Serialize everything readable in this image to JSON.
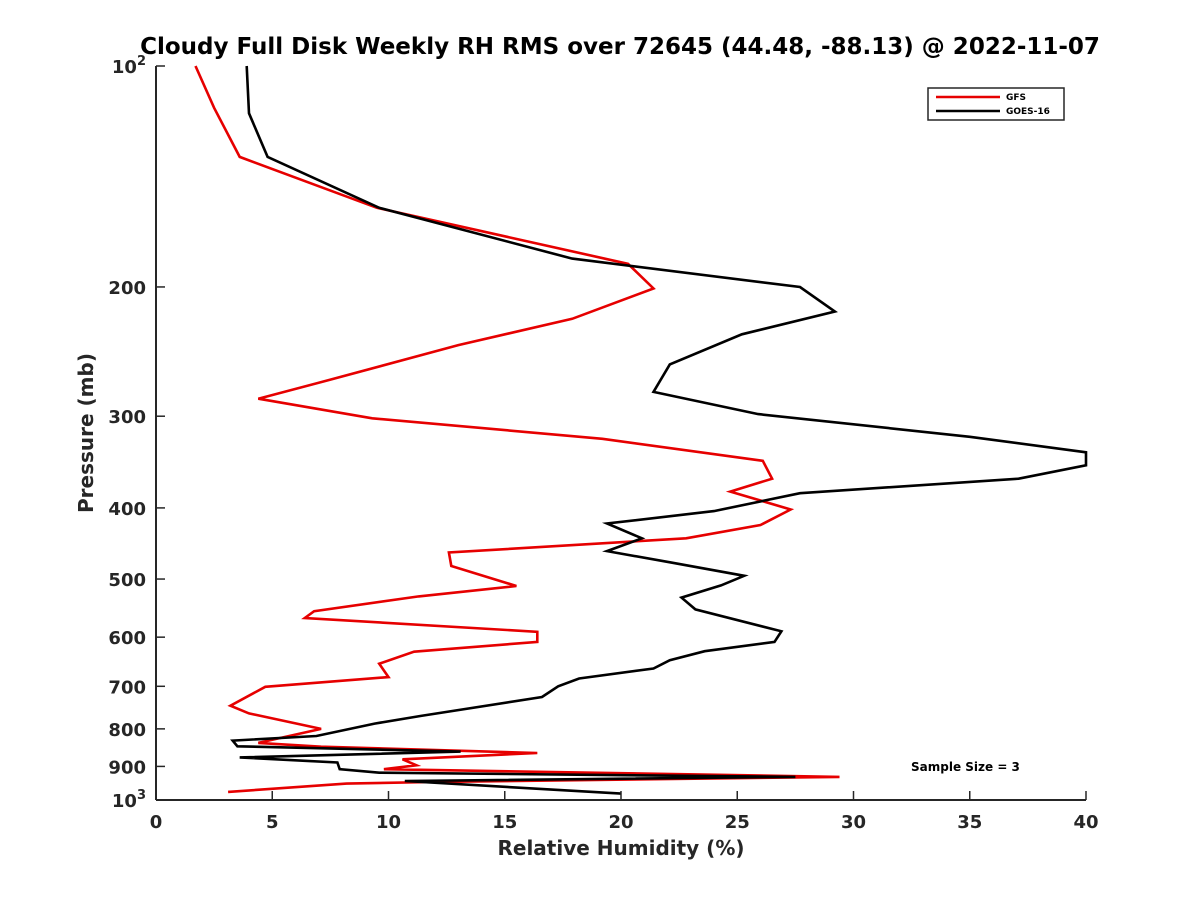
{
  "chart_data": {
    "type": "line",
    "title": "Cloudy Full Disk Weekly RH RMS over 72645 (44.48, -88.13) @ 2022-11-07",
    "xlabel": "Relative Humidity (%)",
    "ylabel": "Pressure (mb)",
    "xlim": [
      0,
      40
    ],
    "ylim": [
      100,
      1000
    ],
    "yscale": "log",
    "y_reversed": true,
    "grid": false,
    "legend_position": "top-right",
    "x_ticks": [
      "0",
      "5",
      "10",
      "15",
      "20",
      "25",
      "30",
      "35",
      "40"
    ],
    "x_tick_values": [
      0,
      5,
      10,
      15,
      20,
      25,
      30,
      35,
      40
    ],
    "y_ticks": [
      {
        "value": 100,
        "base": "10",
        "exp": "2"
      },
      {
        "value": 200,
        "label": "200"
      },
      {
        "value": 300,
        "label": "300"
      },
      {
        "value": 400,
        "label": "400"
      },
      {
        "value": 500,
        "label": "500"
      },
      {
        "value": 600,
        "label": "600"
      },
      {
        "value": 700,
        "label": "700"
      },
      {
        "value": 800,
        "label": "800"
      },
      {
        "value": 900,
        "label": "900"
      },
      {
        "value": 1000,
        "base": "10",
        "exp": "3"
      }
    ],
    "annotation": "Sample Size = 3",
    "series": [
      {
        "name": "GFS",
        "color": "#e60000",
        "points": [
          [
            1.7,
            100
          ],
          [
            2.5,
            114
          ],
          [
            3.6,
            133
          ],
          [
            9.5,
            156
          ],
          [
            20.3,
            186
          ],
          [
            21.4,
            201
          ],
          [
            17.9,
            221
          ],
          [
            13.0,
            240
          ],
          [
            7.4,
            268
          ],
          [
            4.4,
            284
          ],
          [
            9.3,
            302
          ],
          [
            19.2,
            322
          ],
          [
            26.1,
            345
          ],
          [
            26.5,
            365
          ],
          [
            24.7,
            380
          ],
          [
            27.3,
            402
          ],
          [
            26.0,
            422
          ],
          [
            22.8,
            440
          ],
          [
            12.6,
            460
          ],
          [
            12.7,
            480
          ],
          [
            15.5,
            511
          ],
          [
            11.3,
            528
          ],
          [
            6.8,
            553
          ],
          [
            6.4,
            565
          ],
          [
            16.4,
            590
          ],
          [
            16.4,
            609
          ],
          [
            11.1,
            628
          ],
          [
            9.6,
            652
          ],
          [
            10.0,
            680
          ],
          [
            4.7,
            701
          ],
          [
            3.2,
            744
          ],
          [
            4.0,
            762
          ],
          [
            7.1,
            800
          ],
          [
            4.4,
            836
          ],
          [
            7.1,
            846
          ],
          [
            16.4,
            863
          ],
          [
            10.6,
            880
          ],
          [
            11.2,
            897
          ],
          [
            9.8,
            908
          ],
          [
            29.4,
            930
          ],
          [
            11.9,
            945
          ],
          [
            8.2,
            950
          ],
          [
            3.1,
            975
          ]
        ]
      },
      {
        "name": "GOES-16",
        "color": "#000000",
        "points": [
          [
            3.9,
            100
          ],
          [
            4.0,
            116
          ],
          [
            4.8,
            133
          ],
          [
            9.6,
            156
          ],
          [
            17.9,
            183
          ],
          [
            27.7,
            200
          ],
          [
            29.2,
            216
          ],
          [
            25.2,
            232
          ],
          [
            22.1,
            255
          ],
          [
            21.4,
            278
          ],
          [
            25.9,
            298
          ],
          [
            35.0,
            320
          ],
          [
            40.0,
            336
          ],
          [
            40.0,
            350
          ],
          [
            37.1,
            365
          ],
          [
            27.7,
            382
          ],
          [
            24.0,
            404
          ],
          [
            19.4,
            420
          ],
          [
            20.9,
            440
          ],
          [
            19.4,
            458
          ],
          [
            22.2,
            475
          ],
          [
            25.3,
            495
          ],
          [
            24.3,
            510
          ],
          [
            22.6,
            530
          ],
          [
            23.2,
            550
          ],
          [
            26.9,
            589
          ],
          [
            26.6,
            609
          ],
          [
            23.6,
            627
          ],
          [
            22.1,
            645
          ],
          [
            21.4,
            662
          ],
          [
            18.2,
            683
          ],
          [
            17.3,
            700
          ],
          [
            16.6,
            724
          ],
          [
            11.4,
            768
          ],
          [
            9.4,
            787
          ],
          [
            6.9,
            818
          ],
          [
            3.3,
            830
          ],
          [
            3.5,
            845
          ],
          [
            13.1,
            859
          ],
          [
            3.6,
            875
          ],
          [
            7.8,
            889
          ],
          [
            7.9,
            908
          ],
          [
            9.6,
            918
          ],
          [
            27.5,
            930
          ],
          [
            10.7,
            942
          ],
          [
            20.0,
            980
          ]
        ]
      }
    ]
  }
}
